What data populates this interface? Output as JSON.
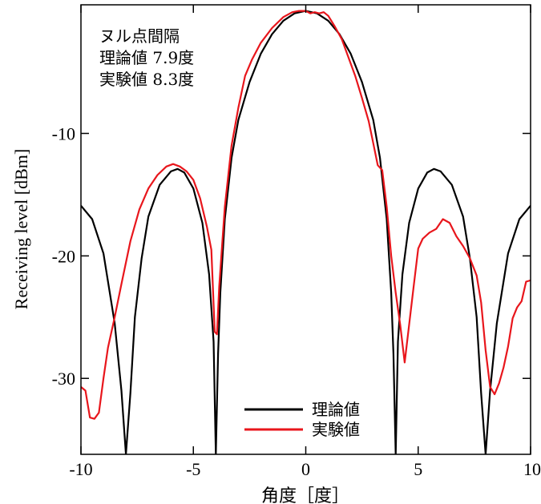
{
  "chart_data": {
    "type": "line",
    "xlabel": "角度［度］",
    "ylabel": "Receiving level [dBm]",
    "xlim": [
      -10,
      10
    ],
    "ylim": [
      -36.2,
      0.5
    ],
    "xticks": [
      -10,
      -5,
      0,
      5,
      10
    ],
    "xtick_labels": [
      "-10",
      "-5",
      "0",
      "5",
      "10"
    ],
    "yticks": [
      -10,
      -20,
      -30
    ],
    "ytick_labels": [
      "-10",
      "-20",
      "-30"
    ],
    "grid": false,
    "legend_position": "bottom-right",
    "annotation": [
      "ヌル点間隔",
      "理論値  7.9度",
      "実験値  8.3度"
    ],
    "series": [
      {
        "name": "理論値",
        "color": "#000000",
        "null_spacing_deg": 7.9,
        "x": [
          -10.0,
          -9.5,
          -9.0,
          -8.5,
          -8.2,
          -8.0,
          -7.8,
          -7.6,
          -7.3,
          -7.0,
          -6.5,
          -6.0,
          -5.7,
          -5.4,
          -5.0,
          -4.6,
          -4.3,
          -4.1,
          -4.0,
          -3.9,
          -3.8,
          -3.6,
          -3.3,
          -3.0,
          -2.5,
          -2.0,
          -1.5,
          -1.0,
          -0.5,
          0.0,
          0.5,
          1.0,
          1.5,
          2.0,
          2.5,
          3.0,
          3.3,
          3.6,
          3.8,
          3.9,
          4.0,
          4.1,
          4.3,
          4.6,
          5.0,
          5.4,
          5.7,
          6.0,
          6.5,
          7.0,
          7.3,
          7.6,
          7.8,
          8.0,
          8.2,
          8.5,
          9.0,
          9.5,
          10.0
        ],
        "y": [
          -15.9,
          -17.0,
          -19.8,
          -25.5,
          -31.0,
          -36.2,
          -31.2,
          -25.0,
          -20.2,
          -16.8,
          -14.2,
          -13.1,
          -12.9,
          -13.2,
          -14.5,
          -17.3,
          -21.5,
          -27.0,
          -36.2,
          -28.0,
          -23.0,
          -17.0,
          -12.0,
          -8.9,
          -5.8,
          -3.5,
          -1.9,
          -0.8,
          -0.2,
          0.0,
          -0.2,
          -0.8,
          -1.9,
          -3.5,
          -5.8,
          -8.9,
          -12.0,
          -17.0,
          -23.0,
          -28.0,
          -36.2,
          -27.0,
          -21.5,
          -17.3,
          -14.5,
          -13.2,
          -12.9,
          -13.1,
          -14.2,
          -16.8,
          -20.2,
          -25.0,
          -31.2,
          -36.2,
          -31.0,
          -25.5,
          -19.8,
          -17.0,
          -15.9
        ]
      },
      {
        "name": "実験値",
        "color": "#e8161c",
        "null_spacing_deg": 8.3,
        "x": [
          -10.0,
          -9.8,
          -9.6,
          -9.4,
          -9.2,
          -9.0,
          -8.8,
          -8.5,
          -8.2,
          -7.8,
          -7.4,
          -7.0,
          -6.6,
          -6.2,
          -5.9,
          -5.6,
          -5.3,
          -5.0,
          -4.7,
          -4.4,
          -4.2,
          -4.05,
          -3.95,
          -3.85,
          -3.6,
          -3.3,
          -3.0,
          -2.7,
          -2.4,
          -2.0,
          -1.5,
          -1.0,
          -0.6,
          -0.3,
          0.0,
          0.2,
          0.4,
          0.6,
          0.8,
          1.0,
          1.3,
          1.6,
          1.9,
          2.2,
          2.5,
          2.8,
          3.0,
          3.2,
          3.4,
          3.6,
          3.8,
          4.0,
          4.2,
          4.4,
          4.6,
          4.8,
          5.0,
          5.2,
          5.5,
          5.8,
          6.1,
          6.4,
          6.7,
          7.0,
          7.3,
          7.6,
          7.8,
          8.0,
          8.2,
          8.4,
          8.6,
          8.8,
          9.0,
          9.2,
          9.4,
          9.6,
          9.8,
          10.0
        ],
        "y": [
          -30.7,
          -31.0,
          -33.2,
          -33.3,
          -32.8,
          -30.0,
          -27.5,
          -25.0,
          -22.3,
          -18.8,
          -16.2,
          -14.5,
          -13.4,
          -12.7,
          -12.5,
          -12.7,
          -13.1,
          -13.8,
          -15.3,
          -17.6,
          -19.5,
          -26.2,
          -26.4,
          -22.5,
          -16.0,
          -11.0,
          -7.9,
          -5.3,
          -4.0,
          -2.6,
          -1.4,
          -0.5,
          -0.1,
          0.0,
          0.0,
          -0.2,
          -0.1,
          -0.2,
          -0.1,
          -0.4,
          -1.3,
          -2.3,
          -3.8,
          -5.3,
          -7.1,
          -9.0,
          -10.8,
          -12.6,
          -13.0,
          -16.0,
          -20.0,
          -23.0,
          -25.6,
          -28.7,
          -25.6,
          -22.5,
          -19.4,
          -18.6,
          -18.1,
          -17.8,
          -17.0,
          -17.3,
          -18.4,
          -19.2,
          -20.2,
          -21.6,
          -23.8,
          -27.7,
          -30.7,
          -31.3,
          -30.4,
          -29.1,
          -27.4,
          -25.1,
          -24.2,
          -23.7,
          -22.1,
          -22.0
        ]
      }
    ]
  }
}
